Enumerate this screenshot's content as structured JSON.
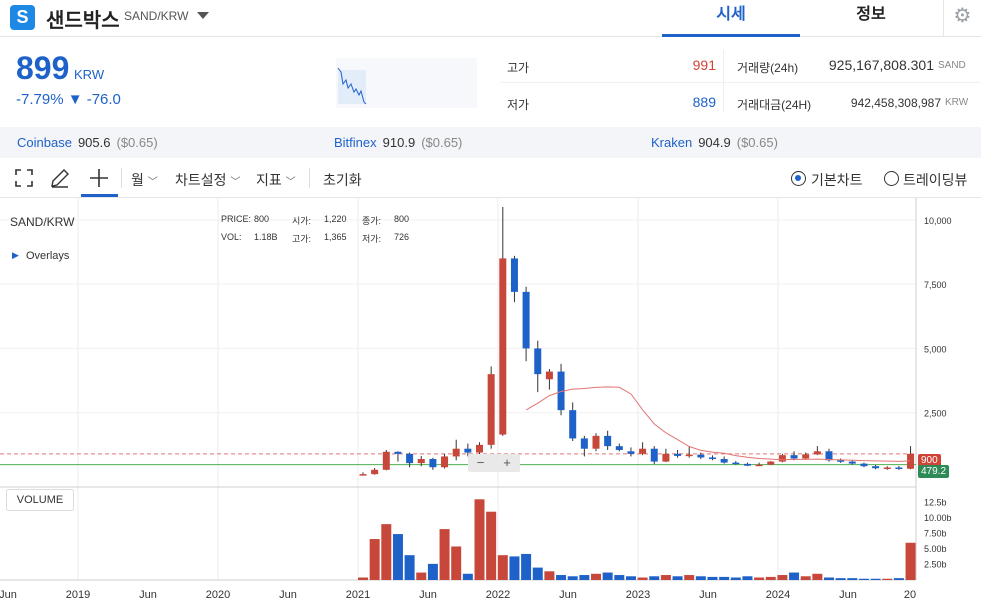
{
  "header": {
    "logo_letter": "S",
    "coin_name": "샌드박스",
    "pair": "SAND/KRW",
    "tabs": [
      {
        "label": "시세"
      },
      {
        "label": "정보"
      }
    ]
  },
  "summary": {
    "price": "899",
    "unit": "KRW",
    "change": "-7.79% ▼ -76.0",
    "high_label": "고가",
    "high_value": "991",
    "low_label": "저가",
    "low_value": "889",
    "vol_label": "거래량(24h)",
    "vol_value": "925,167,808.301",
    "vol_unit": "SAND",
    "amt_label": "거래대금(24H)",
    "amt_value": "942,458,308,987",
    "amt_unit": "KRW"
  },
  "exchanges": [
    {
      "name": "Coinbase",
      "price": "905.6",
      "usd": "($0.65)"
    },
    {
      "name": "Bitfinex",
      "price": "910.9",
      "usd": "($0.65)"
    },
    {
      "name": "Kraken",
      "price": "904.9",
      "usd": "($0.65)"
    }
  ],
  "toolbar": {
    "period": "월",
    "chart_settings": "차트설정",
    "indicators": "지표",
    "reset": "초기화",
    "basic_chart": "기본차트",
    "tradingview": "트레이딩뷰"
  },
  "chart_info": {
    "symbol": "SAND/KRW",
    "overlays": "Overlays",
    "price_label": "PRICE:",
    "price_val": "800",
    "vol_label": "VOL:",
    "vol_val": "1.18B",
    "open_label": "시가:",
    "open_val": "1,220",
    "high_label": "고가:",
    "high_val": "1,365",
    "close_label": "종가:",
    "close_val": "800",
    "low_label": "저가:",
    "low_val": "726",
    "volume_button": "VOLUME",
    "current_tag": "900",
    "ma_tag": "479.2",
    "zoom_out": "−",
    "zoom_in": "+"
  },
  "chart_data": {
    "type": "candlestick",
    "y_ticks": [
      "10,000",
      "7,500",
      "5,000",
      "2,500"
    ],
    "volume_ticks": [
      "12.5b",
      "10.00b",
      "7.50b",
      "5.00b",
      "2.50b"
    ],
    "x_ticks": [
      "Jun",
      "2019",
      "Jun",
      "2020",
      "Jun",
      "2021",
      "Jun",
      "2022",
      "Jun",
      "2023",
      "Jun",
      "2024",
      "Jun",
      "20"
    ],
    "candles": [
      {
        "o": 80,
        "h": 180,
        "l": 60,
        "c": 110
      },
      {
        "o": 110,
        "h": 350,
        "l": 90,
        "c": 280
      },
      {
        "o": 280,
        "h": 1050,
        "l": 260,
        "c": 980
      },
      {
        "o": 980,
        "h": 1000,
        "l": 600,
        "c": 900
      },
      {
        "o": 900,
        "h": 950,
        "l": 380,
        "c": 540
      },
      {
        "o": 540,
        "h": 820,
        "l": 420,
        "c": 700
      },
      {
        "o": 700,
        "h": 750,
        "l": 280,
        "c": 380
      },
      {
        "o": 380,
        "h": 900,
        "l": 330,
        "c": 800
      },
      {
        "o": 800,
        "h": 1450,
        "l": 650,
        "c": 1100
      },
      {
        "o": 1100,
        "h": 1300,
        "l": 800,
        "c": 950
      },
      {
        "o": 950,
        "h": 1350,
        "l": 700,
        "c": 1250
      },
      {
        "o": 1250,
        "h": 4300,
        "l": 1100,
        "c": 4000
      },
      {
        "o": 1650,
        "h": 10500,
        "l": 1600,
        "c": 8500
      },
      {
        "o": 8500,
        "h": 8600,
        "l": 6800,
        "c": 7200
      },
      {
        "o": 7200,
        "h": 7400,
        "l": 4500,
        "c": 5000
      },
      {
        "o": 5000,
        "h": 5300,
        "l": 3300,
        "c": 4000
      },
      {
        "o": 3800,
        "h": 4200,
        "l": 3400,
        "c": 4100
      },
      {
        "o": 4100,
        "h": 4400,
        "l": 2400,
        "c": 2600
      },
      {
        "o": 2600,
        "h": 2900,
        "l": 1400,
        "c": 1500
      },
      {
        "o": 1500,
        "h": 1600,
        "l": 800,
        "c": 1100
      },
      {
        "o": 1100,
        "h": 1700,
        "l": 1000,
        "c": 1600
      },
      {
        "o": 1600,
        "h": 1800,
        "l": 1050,
        "c": 1200
      },
      {
        "o": 1200,
        "h": 1300,
        "l": 1000,
        "c": 1050
      },
      {
        "o": 1000,
        "h": 1150,
        "l": 800,
        "c": 900
      },
      {
        "o": 900,
        "h": 1350,
        "l": 850,
        "c": 1100
      },
      {
        "o": 1100,
        "h": 1200,
        "l": 500,
        "c": 600
      },
      {
        "o": 600,
        "h": 1100,
        "l": 580,
        "c": 900
      },
      {
        "o": 900,
        "h": 1050,
        "l": 750,
        "c": 820
      },
      {
        "o": 820,
        "h": 1200,
        "l": 750,
        "c": 870
      },
      {
        "o": 870,
        "h": 950,
        "l": 700,
        "c": 760
      },
      {
        "o": 760,
        "h": 840,
        "l": 650,
        "c": 700
      },
      {
        "o": 700,
        "h": 800,
        "l": 520,
        "c": 560
      },
      {
        "o": 560,
        "h": 620,
        "l": 480,
        "c": 510
      },
      {
        "o": 510,
        "h": 560,
        "l": 420,
        "c": 440
      },
      {
        "o": 440,
        "h": 560,
        "l": 420,
        "c": 480
      },
      {
        "o": 480,
        "h": 620,
        "l": 470,
        "c": 600
      },
      {
        "o": 600,
        "h": 900,
        "l": 570,
        "c": 850
      },
      {
        "o": 850,
        "h": 1000,
        "l": 650,
        "c": 720
      },
      {
        "o": 720,
        "h": 950,
        "l": 700,
        "c": 880
      },
      {
        "o": 880,
        "h": 1200,
        "l": 850,
        "c": 1000
      },
      {
        "o": 1000,
        "h": 1100,
        "l": 600,
        "c": 650
      },
      {
        "o": 650,
        "h": 720,
        "l": 550,
        "c": 600
      },
      {
        "o": 600,
        "h": 660,
        "l": 480,
        "c": 520
      },
      {
        "o": 520,
        "h": 560,
        "l": 380,
        "c": 420
      },
      {
        "o": 420,
        "h": 470,
        "l": 300,
        "c": 340
      },
      {
        "o": 340,
        "h": 420,
        "l": 280,
        "c": 370
      },
      {
        "o": 370,
        "h": 430,
        "l": 280,
        "c": 320
      },
      {
        "o": 320,
        "h": 1200,
        "l": 300,
        "c": 900
      }
    ],
    "volumes": [
      0.4,
      6.6,
      9.0,
      7.4,
      4.0,
      1.2,
      2.6,
      8.2,
      5.4,
      1.0,
      13.0,
      11.0,
      4.0,
      3.8,
      4.2,
      2.0,
      1.4,
      0.8,
      0.6,
      0.8,
      1.0,
      1.2,
      0.8,
      0.6,
      0.4,
      0.6,
      0.8,
      0.6,
      0.8,
      0.6,
      0.5,
      0.5,
      0.4,
      0.6,
      0.4,
      0.5,
      0.8,
      1.2,
      0.6,
      1.0,
      0.4,
      0.3,
      0.3,
      0.2,
      0.2,
      0.2,
      0.3,
      6.0
    ]
  }
}
